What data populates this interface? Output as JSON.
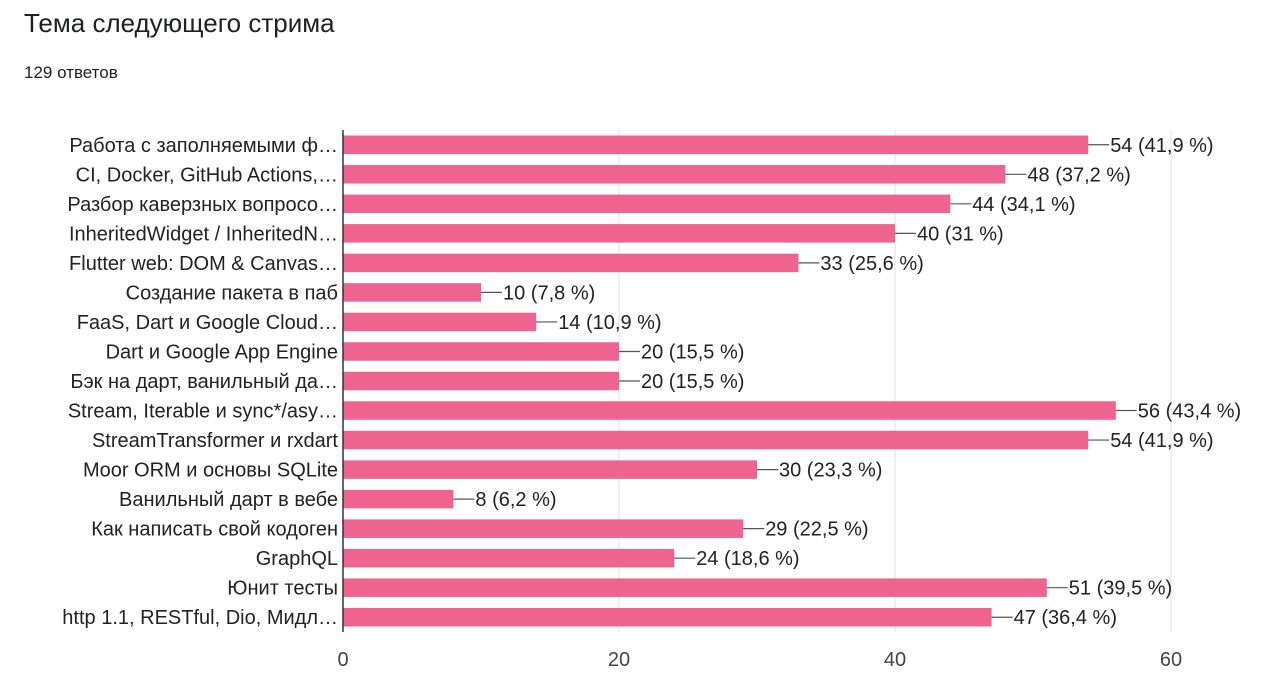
{
  "header": {
    "title": "Тема следующего стрима",
    "response_count": "129 ответов"
  },
  "colors": {
    "bar": "#ef6391",
    "grid": "#e0e0e0",
    "axis": "#333333",
    "leader": "#555555"
  },
  "chart_data": {
    "type": "bar",
    "orientation": "horizontal",
    "title": "Тема следующего стрима",
    "subtitle": "129 ответов",
    "xlabel": "",
    "ylabel": "",
    "xlim": [
      0,
      60
    ],
    "xticks": [
      0,
      20,
      40,
      60
    ],
    "grid": true,
    "legend": "none",
    "categories": [
      "Работа с заполняемыми ф…",
      "CI, Docker, GitHub Actions,…",
      "Разбор каверзных вопросо…",
      "InheritedWidget / InheritedN…",
      "Flutter web: DOM & Canvas…",
      "Создание пакета в паб",
      "FaaS, Dart и Google Cloud…",
      "Dart и Google App Engine",
      "Бэк на дарт, ванильный да…",
      "Stream, Iterable и sync*/asy…",
      "StreamTransformer и rxdart",
      "Moor ORM и основы SQLite",
      "Ванильный дарт в вебе",
      "Как написать свой кодоген",
      "GraphQL",
      "Юнит тесты",
      "http 1.1, RESTful, Dio, Мидл…"
    ],
    "values": [
      54,
      48,
      44,
      40,
      33,
      10,
      14,
      20,
      20,
      56,
      54,
      30,
      8,
      29,
      24,
      51,
      47
    ],
    "value_labels": [
      "54 (41,9 %)",
      "48 (37,2 %)",
      "44 (34,1 %)",
      "40 (31 %)",
      "33 (25,6 %)",
      "10 (7,8 %)",
      "14 (10,9 %)",
      "20 (15,5 %)",
      "20 (15,5 %)",
      "56 (43,4 %)",
      "54 (41,9 %)",
      "30 (23,3 %)",
      "8 (6,2 %)",
      "29 (22,5 %)",
      "24 (18,6 %)",
      "51 (39,5 %)",
      "47 (36,4 %)"
    ]
  }
}
